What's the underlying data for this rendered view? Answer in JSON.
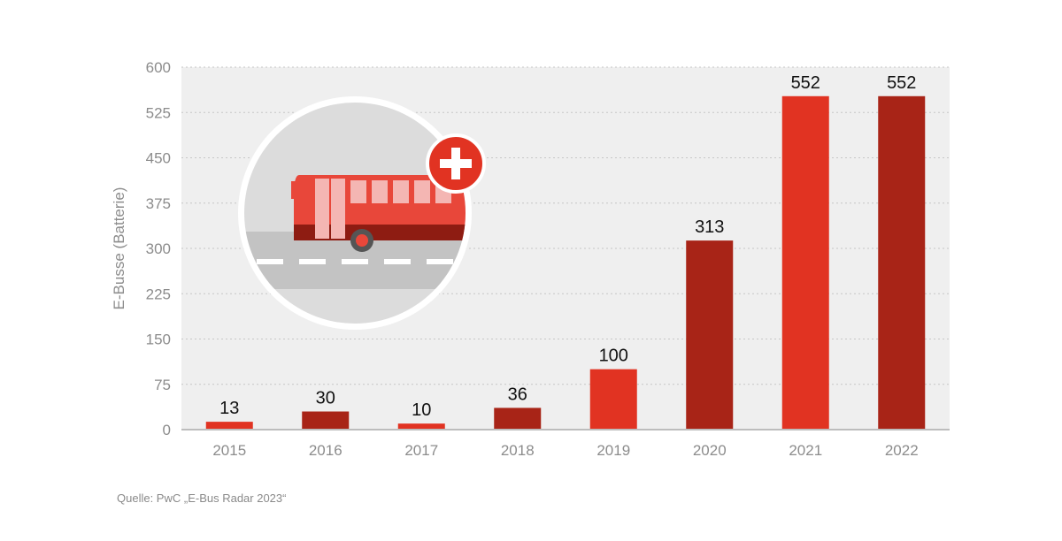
{
  "chart_data": {
    "type": "bar",
    "categories": [
      "2015",
      "2016",
      "2017",
      "2018",
      "2019",
      "2020",
      "2021",
      "2022"
    ],
    "values": [
      13,
      30,
      10,
      36,
      100,
      313,
      552,
      552
    ],
    "title": "",
    "xlabel": "",
    "ylabel": "E-Busse (Batterie)",
    "ylim": [
      0,
      600
    ],
    "yticks": [
      0,
      75,
      150,
      225,
      300,
      375,
      450,
      525,
      600
    ],
    "grid": true,
    "data_labels": true,
    "bar_colors": [
      "#e13322",
      "#a82417",
      "#e13322",
      "#a82417",
      "#e13322",
      "#a82417",
      "#e13322",
      "#a82417"
    ]
  },
  "illustration": {
    "icon": "electric-bus-plus-icon",
    "accent": "#e13322"
  },
  "source": "Quelle: PwC „E-Bus Radar 2023“"
}
